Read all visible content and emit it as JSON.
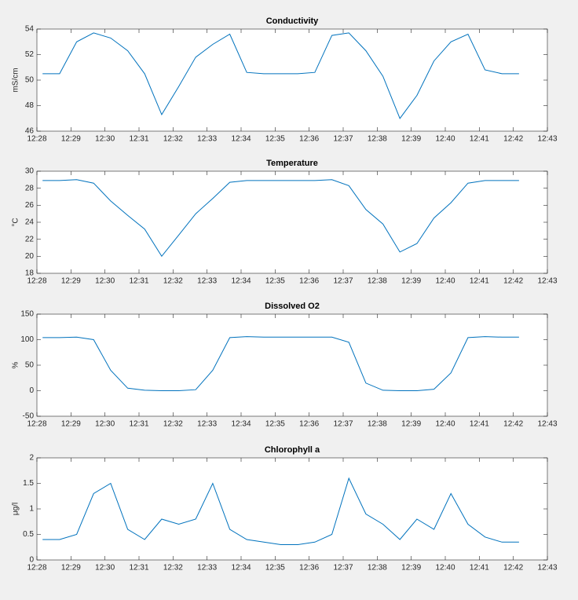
{
  "chart_data": [
    {
      "type": "line",
      "title": "Conductivity",
      "ylabel": "mS/cm",
      "x": [
        "12:28:10",
        "12:28:40",
        "12:29:10",
        "12:29:40",
        "12:30:10",
        "12:30:40",
        "12:31:10",
        "12:31:40",
        "12:32:10",
        "12:32:40",
        "12:33:10",
        "12:33:40",
        "12:34:10",
        "12:34:40",
        "12:35:10",
        "12:35:40",
        "12:36:10",
        "12:36:40",
        "12:37:10",
        "12:37:40",
        "12:38:10",
        "12:38:40",
        "12:39:10",
        "12:39:40",
        "12:40:10",
        "12:40:40",
        "12:41:10",
        "12:41:40",
        "12:42:10"
      ],
      "values": [
        50.5,
        50.5,
        53.0,
        53.7,
        53.3,
        52.3,
        50.5,
        47.3,
        49.5,
        51.8,
        52.8,
        53.6,
        50.6,
        50.5,
        50.5,
        50.5,
        50.6,
        53.5,
        53.7,
        52.3,
        50.3,
        47.0,
        48.8,
        51.5,
        53.0,
        53.6,
        50.8,
        50.5,
        50.5
      ],
      "color": "#0072bd",
      "xlim": [
        "12:28",
        "12:43"
      ],
      "xticks": [
        "12:28",
        "12:29",
        "12:30",
        "12:31",
        "12:32",
        "12:33",
        "12:34",
        "12:35",
        "12:36",
        "12:37",
        "12:38",
        "12:39",
        "12:40",
        "12:41",
        "12:42",
        "12:43"
      ],
      "ylim": [
        46,
        54
      ],
      "yticks": [
        46,
        48,
        50,
        52,
        54
      ]
    },
    {
      "type": "line",
      "title": "Temperature",
      "ylabel": "°C",
      "x": [
        "12:28:10",
        "12:28:40",
        "12:29:10",
        "12:29:40",
        "12:30:10",
        "12:30:40",
        "12:31:10",
        "12:31:40",
        "12:32:10",
        "12:32:40",
        "12:33:10",
        "12:33:40",
        "12:34:10",
        "12:34:40",
        "12:35:10",
        "12:35:40",
        "12:36:10",
        "12:36:40",
        "12:37:10",
        "12:37:40",
        "12:38:10",
        "12:38:40",
        "12:39:10",
        "12:39:40",
        "12:40:10",
        "12:40:40",
        "12:41:10",
        "12:41:40",
        "12:42:10"
      ],
      "values": [
        28.9,
        28.9,
        29.0,
        28.6,
        26.5,
        24.8,
        23.2,
        20.0,
        22.5,
        25.0,
        26.8,
        28.7,
        28.9,
        28.9,
        28.9,
        28.9,
        28.9,
        29.0,
        28.3,
        25.5,
        23.8,
        20.5,
        21.5,
        24.5,
        26.3,
        28.6,
        28.9,
        28.9,
        28.9
      ],
      "color": "#0072bd",
      "xlim": [
        "12:28",
        "12:43"
      ],
      "xticks": [
        "12:28",
        "12:29",
        "12:30",
        "12:31",
        "12:32",
        "12:33",
        "12:34",
        "12:35",
        "12:36",
        "12:37",
        "12:38",
        "12:39",
        "12:40",
        "12:41",
        "12:42",
        "12:43"
      ],
      "ylim": [
        18,
        30
      ],
      "yticks": [
        18,
        20,
        22,
        24,
        26,
        28,
        30
      ]
    },
    {
      "type": "line",
      "title": "Dissolved O2",
      "ylabel": "%",
      "x": [
        "12:28:10",
        "12:28:40",
        "12:29:10",
        "12:29:40",
        "12:30:10",
        "12:30:40",
        "12:31:10",
        "12:31:40",
        "12:32:10",
        "12:32:40",
        "12:33:10",
        "12:33:40",
        "12:34:10",
        "12:34:40",
        "12:35:10",
        "12:35:40",
        "12:36:10",
        "12:36:40",
        "12:37:10",
        "12:37:40",
        "12:38:10",
        "12:38:40",
        "12:39:10",
        "12:39:40",
        "12:40:10",
        "12:40:40",
        "12:41:10",
        "12:41:40",
        "12:42:10"
      ],
      "values": [
        104,
        104,
        105,
        100,
        40,
        5,
        1,
        0,
        0,
        2,
        40,
        104,
        106,
        105,
        105,
        105,
        105,
        105,
        95,
        15,
        1,
        0,
        0,
        3,
        35,
        104,
        106,
        105,
        105
      ],
      "color": "#0072bd",
      "xlim": [
        "12:28",
        "12:43"
      ],
      "xticks": [
        "12:28",
        "12:29",
        "12:30",
        "12:31",
        "12:32",
        "12:33",
        "12:34",
        "12:35",
        "12:36",
        "12:37",
        "12:38",
        "12:39",
        "12:40",
        "12:41",
        "12:42",
        "12:43"
      ],
      "ylim": [
        -50,
        150
      ],
      "yticks": [
        -50,
        0,
        50,
        100,
        150
      ]
    },
    {
      "type": "line",
      "title": "Chlorophyll a",
      "ylabel": "μg/l",
      "x": [
        "12:28:10",
        "12:28:40",
        "12:29:10",
        "12:29:40",
        "12:30:10",
        "12:30:40",
        "12:31:10",
        "12:31:40",
        "12:32:10",
        "12:32:40",
        "12:33:10",
        "12:33:40",
        "12:34:10",
        "12:34:40",
        "12:35:10",
        "12:35:40",
        "12:36:10",
        "12:36:40",
        "12:37:10",
        "12:37:40",
        "12:38:10",
        "12:38:40",
        "12:39:10",
        "12:39:40",
        "12:40:10",
        "12:40:40",
        "12:41:10",
        "12:41:40",
        "12:42:10"
      ],
      "values": [
        0.4,
        0.4,
        0.5,
        1.3,
        1.5,
        0.6,
        0.4,
        0.8,
        0.7,
        0.8,
        1.5,
        0.6,
        0.4,
        0.35,
        0.3,
        0.3,
        0.35,
        0.5,
        1.6,
        0.9,
        0.7,
        0.4,
        0.8,
        0.6,
        1.3,
        0.7,
        0.45,
        0.35,
        0.35
      ],
      "color": "#0072bd",
      "xlim": [
        "12:28",
        "12:43"
      ],
      "xticks": [
        "12:28",
        "12:29",
        "12:30",
        "12:31",
        "12:32",
        "12:33",
        "12:34",
        "12:35",
        "12:36",
        "12:37",
        "12:38",
        "12:39",
        "12:40",
        "12:41",
        "12:42",
        "12:43"
      ],
      "ylim": [
        0,
        2
      ],
      "yticks": [
        0,
        0.5,
        1,
        1.5,
        2
      ]
    }
  ]
}
